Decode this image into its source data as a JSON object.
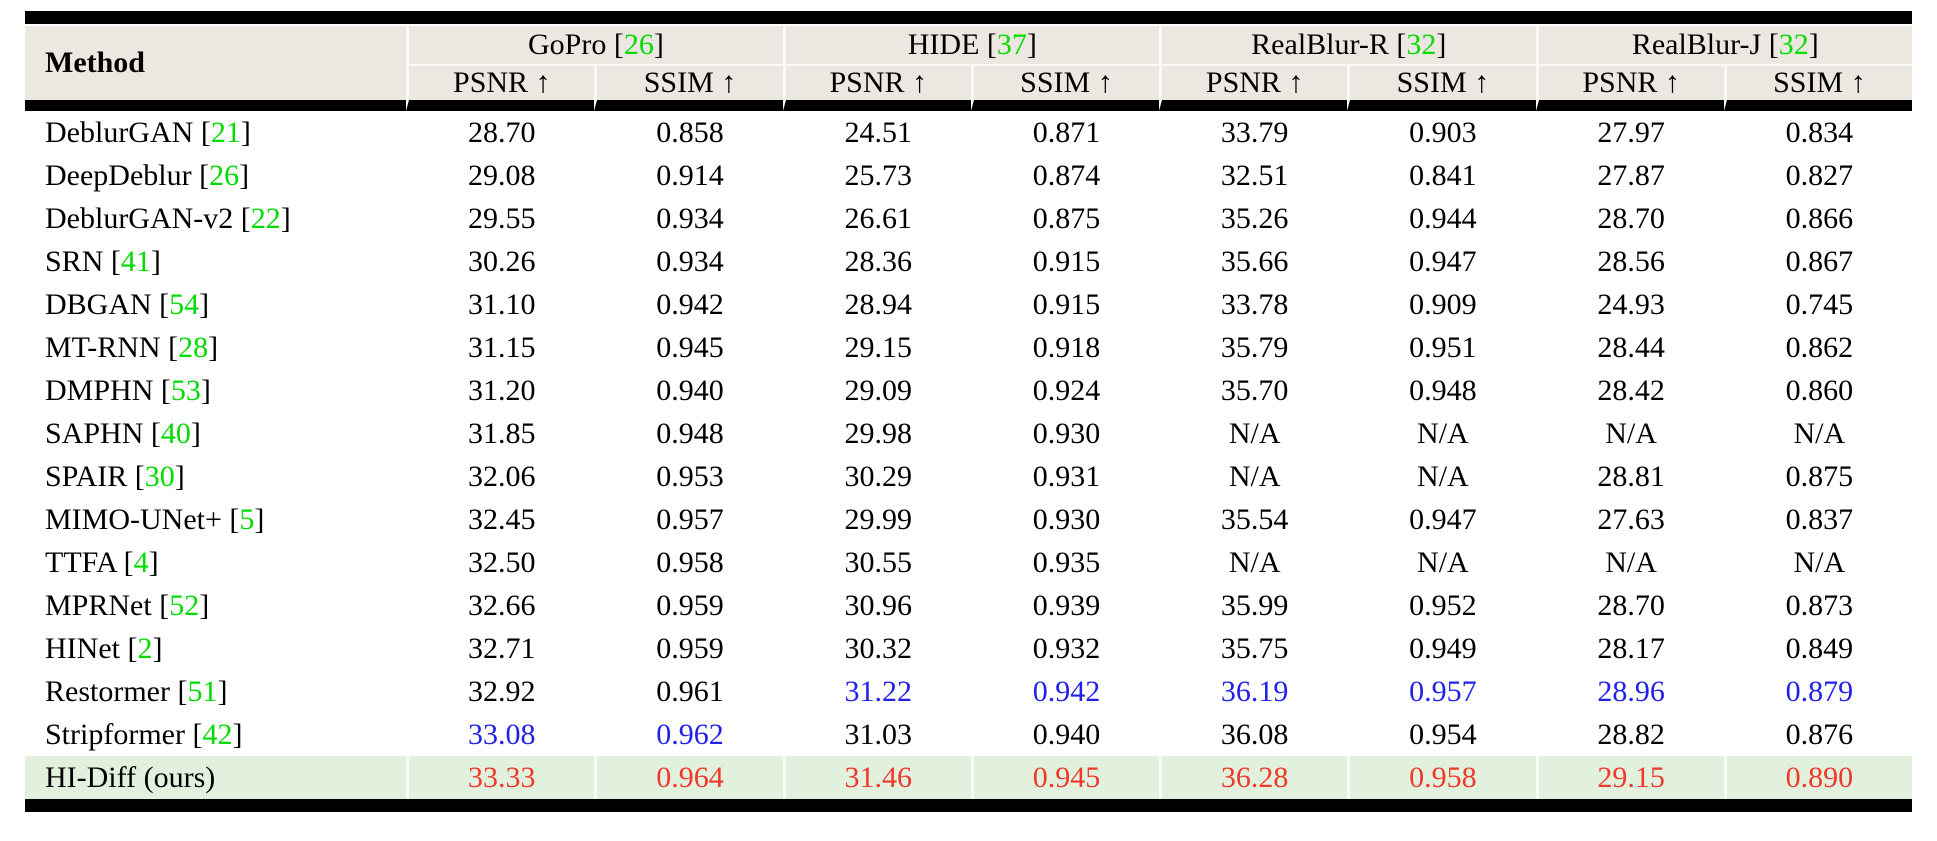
{
  "table": {
    "method_header": "Method",
    "metric_psnr": "PSNR ↑",
    "metric_ssim": "SSIM ↑",
    "bracket_open": "[",
    "bracket_close": "]",
    "groups": [
      {
        "name": "GoPro",
        "cite": "26"
      },
      {
        "name": "HIDE",
        "cite": "37"
      },
      {
        "name": "RealBlur-R",
        "cite": "32"
      },
      {
        "name": "RealBlur-J",
        "cite": "32"
      }
    ],
    "rows": [
      {
        "method": "DeblurGAN",
        "cite": "21",
        "highlight": false,
        "values": [
          "28.70",
          "0.858",
          "24.51",
          "0.871",
          "33.79",
          "0.903",
          "27.97",
          "0.834"
        ],
        "colors": [
          "k",
          "k",
          "k",
          "k",
          "k",
          "k",
          "k",
          "k"
        ]
      },
      {
        "method": "DeepDeblur",
        "cite": "26",
        "highlight": false,
        "values": [
          "29.08",
          "0.914",
          "25.73",
          "0.874",
          "32.51",
          "0.841",
          "27.87",
          "0.827"
        ],
        "colors": [
          "k",
          "k",
          "k",
          "k",
          "k",
          "k",
          "k",
          "k"
        ]
      },
      {
        "method": "DeblurGAN-v2",
        "cite": "22",
        "highlight": false,
        "values": [
          "29.55",
          "0.934",
          "26.61",
          "0.875",
          "35.26",
          "0.944",
          "28.70",
          "0.866"
        ],
        "colors": [
          "k",
          "k",
          "k",
          "k",
          "k",
          "k",
          "k",
          "k"
        ]
      },
      {
        "method": "SRN",
        "cite": "41",
        "highlight": false,
        "values": [
          "30.26",
          "0.934",
          "28.36",
          "0.915",
          "35.66",
          "0.947",
          "28.56",
          "0.867"
        ],
        "colors": [
          "k",
          "k",
          "k",
          "k",
          "k",
          "k",
          "k",
          "k"
        ]
      },
      {
        "method": "DBGAN",
        "cite": "54",
        "highlight": false,
        "values": [
          "31.10",
          "0.942",
          "28.94",
          "0.915",
          "33.78",
          "0.909",
          "24.93",
          "0.745"
        ],
        "colors": [
          "k",
          "k",
          "k",
          "k",
          "k",
          "k",
          "k",
          "k"
        ]
      },
      {
        "method": "MT-RNN",
        "cite": "28",
        "highlight": false,
        "values": [
          "31.15",
          "0.945",
          "29.15",
          "0.918",
          "35.79",
          "0.951",
          "28.44",
          "0.862"
        ],
        "colors": [
          "k",
          "k",
          "k",
          "k",
          "k",
          "k",
          "k",
          "k"
        ]
      },
      {
        "method": "DMPHN",
        "cite": "53",
        "highlight": false,
        "values": [
          "31.20",
          "0.940",
          "29.09",
          "0.924",
          "35.70",
          "0.948",
          "28.42",
          "0.860"
        ],
        "colors": [
          "k",
          "k",
          "k",
          "k",
          "k",
          "k",
          "k",
          "k"
        ]
      },
      {
        "method": "SAPHN",
        "cite": "40",
        "highlight": false,
        "values": [
          "31.85",
          "0.948",
          "29.98",
          "0.930",
          "N/A",
          "N/A",
          "N/A",
          "N/A"
        ],
        "colors": [
          "k",
          "k",
          "k",
          "k",
          "k",
          "k",
          "k",
          "k"
        ]
      },
      {
        "method": "SPAIR",
        "cite": "30",
        "highlight": false,
        "values": [
          "32.06",
          "0.953",
          "30.29",
          "0.931",
          "N/A",
          "N/A",
          "28.81",
          "0.875"
        ],
        "colors": [
          "k",
          "k",
          "k",
          "k",
          "k",
          "k",
          "k",
          "k"
        ]
      },
      {
        "method": "MIMO-UNet+",
        "cite": "5",
        "highlight": false,
        "values": [
          "32.45",
          "0.957",
          "29.99",
          "0.930",
          "35.54",
          "0.947",
          "27.63",
          "0.837"
        ],
        "colors": [
          "k",
          "k",
          "k",
          "k",
          "k",
          "k",
          "k",
          "k"
        ]
      },
      {
        "method": "TTFA",
        "cite": "4",
        "highlight": false,
        "values": [
          "32.50",
          "0.958",
          "30.55",
          "0.935",
          "N/A",
          "N/A",
          "N/A",
          "N/A"
        ],
        "colors": [
          "k",
          "k",
          "k",
          "k",
          "k",
          "k",
          "k",
          "k"
        ]
      },
      {
        "method": "MPRNet",
        "cite": "52",
        "highlight": false,
        "values": [
          "32.66",
          "0.959",
          "30.96",
          "0.939",
          "35.99",
          "0.952",
          "28.70",
          "0.873"
        ],
        "colors": [
          "k",
          "k",
          "k",
          "k",
          "k",
          "k",
          "k",
          "k"
        ]
      },
      {
        "method": "HINet",
        "cite": "2",
        "highlight": false,
        "values": [
          "32.71",
          "0.959",
          "30.32",
          "0.932",
          "35.75",
          "0.949",
          "28.17",
          "0.849"
        ],
        "colors": [
          "k",
          "k",
          "k",
          "k",
          "k",
          "k",
          "k",
          "k"
        ]
      },
      {
        "method": "Restormer",
        "cite": "51",
        "highlight": false,
        "values": [
          "32.92",
          "0.961",
          "31.22",
          "0.942",
          "36.19",
          "0.957",
          "28.96",
          "0.879"
        ],
        "colors": [
          "k",
          "k",
          "b",
          "b",
          "b",
          "b",
          "b",
          "b"
        ]
      },
      {
        "method": "Stripformer",
        "cite": "42",
        "highlight": false,
        "values": [
          "33.08",
          "0.962",
          "31.03",
          "0.940",
          "36.08",
          "0.954",
          "28.82",
          "0.876"
        ],
        "colors": [
          "b",
          "b",
          "k",
          "k",
          "k",
          "k",
          "k",
          "k"
        ]
      },
      {
        "method": "HI-Diff (ours)",
        "cite": null,
        "highlight": true,
        "values": [
          "33.33",
          "0.964",
          "31.46",
          "0.945",
          "36.28",
          "0.958",
          "29.15",
          "0.890"
        ],
        "colors": [
          "r",
          "r",
          "r",
          "r",
          "r",
          "r",
          "r",
          "r"
        ]
      }
    ]
  },
  "colors": {
    "best": "#f0392b",
    "second_best": "#2121e8",
    "citation": "#00dc00",
    "header_bg": "#ece8e1",
    "highlight_bg": "#e2f1de",
    "rule": "#000000",
    "text": "#000000"
  }
}
